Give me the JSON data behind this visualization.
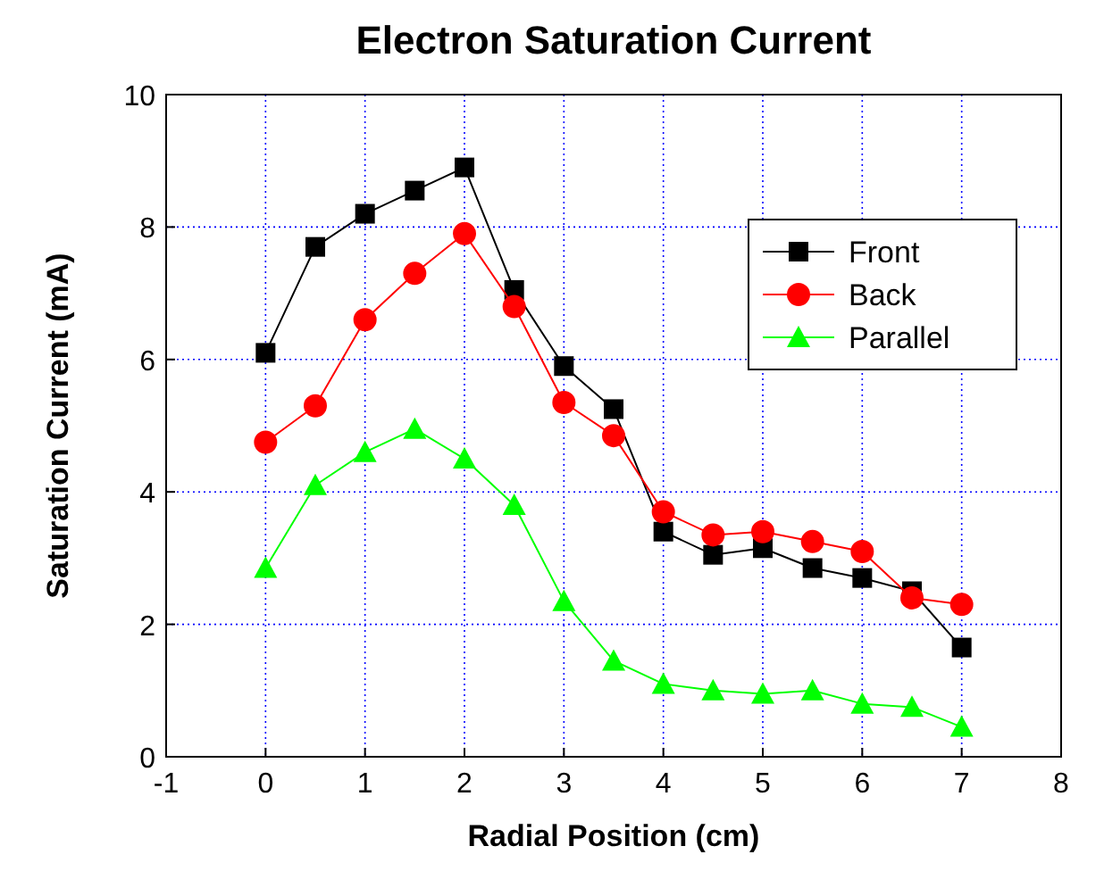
{
  "chart_data": {
    "type": "line",
    "title": "Electron Saturation Current",
    "xlabel": "Radial Position (cm)",
    "ylabel": "Saturation Current (mA)",
    "x": [
      0,
      0.5,
      1,
      1.5,
      2,
      2.5,
      3,
      3.5,
      4,
      4.5,
      5,
      5.5,
      6,
      6.5,
      7
    ],
    "series": [
      {
        "name": "Front",
        "color": "#000000",
        "marker": "square",
        "values": [
          6.1,
          7.7,
          8.2,
          8.55,
          8.9,
          7.05,
          5.9,
          5.25,
          3.4,
          3.05,
          3.15,
          2.85,
          2.7,
          2.5,
          1.65
        ]
      },
      {
        "name": "Back",
        "color": "#ff0000",
        "marker": "circle",
        "values": [
          4.75,
          5.3,
          6.6,
          7.3,
          7.9,
          6.8,
          5.35,
          4.85,
          3.7,
          3.35,
          3.4,
          3.25,
          3.1,
          2.4,
          2.3
        ]
      },
      {
        "name": "Parallel",
        "color": "#00ff00",
        "marker": "triangle",
        "values": [
          2.85,
          4.1,
          4.6,
          4.95,
          4.5,
          3.8,
          2.35,
          1.45,
          1.1,
          1.0,
          0.95,
          1.0,
          0.8,
          0.75,
          0.45
        ]
      }
    ],
    "xlim": [
      -1,
      8
    ],
    "xticks": [
      -1,
      0,
      1,
      2,
      3,
      4,
      5,
      6,
      7,
      8
    ],
    "ylim": [
      0,
      10
    ],
    "yticks": [
      0,
      2,
      4,
      6,
      8,
      10
    ],
    "grid": true,
    "legend": "top right"
  }
}
